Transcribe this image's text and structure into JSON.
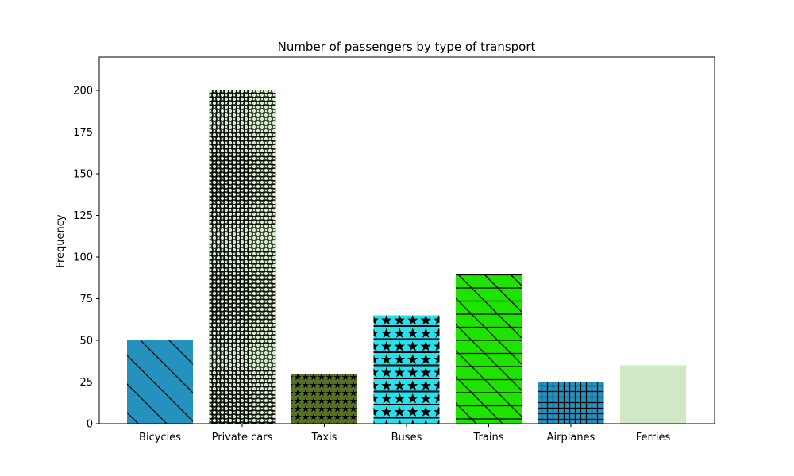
{
  "chart_data": {
    "type": "bar",
    "title": "Number of passengers by type of transport",
    "xlabel": "",
    "ylabel": "Frequency",
    "ylim": [
      0,
      220
    ],
    "yticks": [
      0,
      25,
      50,
      75,
      100,
      125,
      150,
      175,
      200
    ],
    "grid": false,
    "categories": [
      "Bicycles",
      "Private cars",
      "Taxis",
      "Buses",
      "Trains",
      "Airplanes",
      "Ferries"
    ],
    "values": [
      50,
      200,
      30,
      65,
      90,
      25,
      35
    ],
    "colors": [
      "#2591bd",
      "#d3ecc7",
      "#557022",
      "#27e0ec",
      "#1ee300",
      "#2591bd",
      "#d0e8c3"
    ],
    "hatches": [
      "diagonal",
      "circles",
      "stars-small",
      "stars",
      "diag-horiz",
      "grid",
      "none"
    ]
  }
}
